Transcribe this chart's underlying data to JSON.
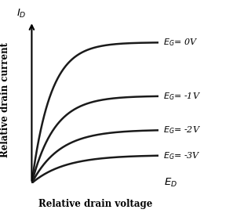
{
  "title": "",
  "xlabel": "Relative drain voltage",
  "ylabel": "Relative drain current",
  "x_axis_label_math": "$E_D$",
  "y_axis_label_math": "$I_D$",
  "curves": [
    {
      "label": "$E_G$= 0V",
      "sat_level": 1.0,
      "knee": 0.15
    },
    {
      "label": "$E_G$= -1V",
      "sat_level": 0.62,
      "knee": 0.18
    },
    {
      "label": "$E_G$= -2V",
      "sat_level": 0.38,
      "knee": 0.22
    },
    {
      "label": "$E_G$= -3V",
      "sat_level": 0.2,
      "knee": 0.26
    }
  ],
  "curve_color": "#1a1a1a",
  "curve_linewidth": 1.8,
  "background_color": "#ffffff",
  "xlim": [
    0,
    1.0
  ],
  "ylim": [
    0,
    1.18
  ],
  "label_fontsize": 8.0,
  "axis_label_fontsize": 8.5,
  "math_label_fontsize": 9.5
}
